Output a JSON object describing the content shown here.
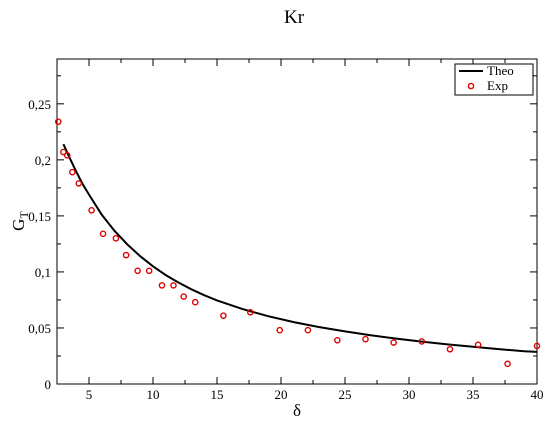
{
  "chart_data": {
    "type": "scatter",
    "title": "Kr",
    "xlabel": "δ",
    "ylabel": "G",
    "ylabel_sub": "T",
    "xlim": [
      2.5,
      40
    ],
    "ylim": [
      0,
      0.29
    ],
    "xticks": [
      5,
      10,
      15,
      20,
      25,
      30,
      35,
      40
    ],
    "xtick_labels": [
      "5",
      "10",
      "15",
      "20",
      "25",
      "30",
      "35",
      "40"
    ],
    "yticks": [
      0,
      0.05,
      0.1,
      0.15,
      0.2,
      0.25
    ],
    "ytick_labels": [
      "0",
      "0,05",
      "0,1",
      "0,15",
      "0,2",
      "0,25"
    ],
    "grid": false,
    "legend_position": "top-right",
    "series": [
      {
        "name": "Theo",
        "kind": "line",
        "color": "#000000",
        "x": [
          3.0,
          3.5,
          4.0,
          4.5,
          5.0,
          6.0,
          7.0,
          8.0,
          9.0,
          10.0,
          11.0,
          12.0,
          13.0,
          14.0,
          15.0,
          17.0,
          19.0,
          21.0,
          23.0,
          25.0,
          27.0,
          29.0,
          31.0,
          33.0,
          35.0,
          37.0,
          39.0,
          40.0
        ],
        "y": [
          0.214,
          0.2015,
          0.1895,
          0.1785,
          0.169,
          0.151,
          0.1365,
          0.1245,
          0.114,
          0.105,
          0.0972,
          0.0905,
          0.0845,
          0.0792,
          0.0746,
          0.0668,
          0.0605,
          0.0552,
          0.0508,
          0.0469,
          0.0435,
          0.0405,
          0.0378,
          0.0353,
          0.0332,
          0.0311,
          0.0293,
          0.0286
        ]
      },
      {
        "name": "Exp",
        "kind": "scatter",
        "color": "#e00000",
        "x": [
          2.6,
          3.0,
          3.3,
          3.7,
          4.2,
          5.2,
          6.1,
          7.1,
          7.9,
          8.8,
          9.7,
          10.7,
          11.6,
          12.4,
          13.3,
          15.5,
          17.6,
          19.9,
          22.1,
          24.4,
          26.6,
          28.8,
          31.0,
          33.2,
          35.4,
          37.7,
          40.0
        ],
        "y": [
          0.234,
          0.207,
          0.204,
          0.189,
          0.179,
          0.155,
          0.134,
          0.13,
          0.115,
          0.101,
          0.101,
          0.088,
          0.088,
          0.078,
          0.073,
          0.061,
          0.064,
          0.048,
          0.048,
          0.039,
          0.04,
          0.037,
          0.038,
          0.031,
          0.035,
          0.018,
          0.034
        ]
      }
    ]
  }
}
